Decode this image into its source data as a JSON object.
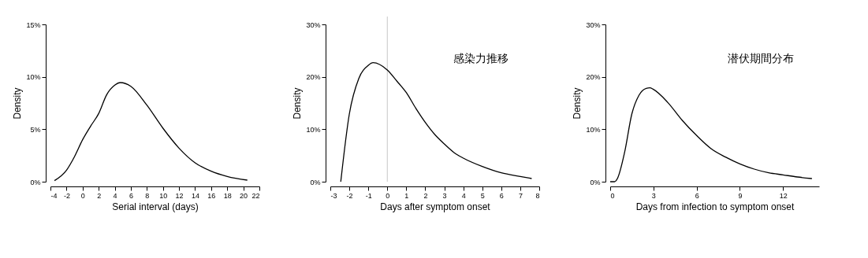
{
  "chart_data": [
    {
      "type": "line",
      "xlabel": "Serial interval (days)",
      "ylabel": "Density",
      "x": [
        -3.5,
        -2,
        -1,
        0,
        1,
        2,
        3,
        4,
        4.7,
        6,
        8,
        10,
        12,
        14,
        16,
        18,
        20.5
      ],
      "series": [
        {
          "color": "#000000",
          "values": [
            0.1,
            1.1,
            2.4,
            4.0,
            5.3,
            6.5,
            8.3,
            9.2,
            9.45,
            9.1,
            7.3,
            5.1,
            3.2,
            1.8,
            1.0,
            0.5,
            0.15
          ]
        }
      ],
      "xlim": [
        -4,
        22
      ],
      "xticks": [
        -4,
        -2,
        0,
        2,
        4,
        6,
        8,
        10,
        12,
        14,
        16,
        18,
        20,
        22
      ],
      "ylim": [
        0,
        15
      ],
      "yticks": [
        {
          "value": 0,
          "label": "0%"
        },
        {
          "value": 5,
          "label": "5%"
        },
        {
          "value": 10,
          "label": "10%"
        },
        {
          "value": 15,
          "label": "15%"
        }
      ],
      "grid": false,
      "marker": "none",
      "line_style": "solid"
    },
    {
      "type": "line",
      "xlabel": "Days after symptom onset",
      "ylabel": "Density",
      "annotations": [
        "感染力推移"
      ],
      "x": [
        -2.45,
        -2,
        -1.5,
        -1,
        -0.75,
        0,
        0.5,
        1,
        1.5,
        2,
        2.5,
        3,
        3.5,
        4,
        5,
        6,
        7,
        7.6
      ],
      "series": [
        {
          "color": "#000000",
          "values": [
            0,
            12.9,
            19.7,
            22.2,
            22.7,
            21.3,
            19.2,
            17.0,
            14.0,
            11.3,
            9.0,
            7.2,
            5.6,
            4.5,
            2.9,
            1.7,
            1.0,
            0.6
          ]
        }
      ],
      "xlim": [
        -3,
        8
      ],
      "xticks": [
        -3,
        -2,
        -1,
        0,
        1,
        2,
        3,
        4,
        5,
        6,
        7,
        8
      ],
      "ylim": [
        0,
        30
      ],
      "yticks": [
        {
          "value": 0,
          "label": "0%"
        },
        {
          "value": 10,
          "label": "10%"
        },
        {
          "value": 20,
          "label": "20%"
        },
        {
          "value": 30,
          "label": "30%"
        }
      ],
      "ref_lines": [
        {
          "axis": "x",
          "value": 0,
          "color": "#c8c8c8"
        }
      ],
      "grid": false,
      "marker": "none",
      "line_style": "solid"
    },
    {
      "type": "line",
      "xlabel": "Days from infection to symptom onset",
      "ylabel": "Density",
      "annotations": [
        "潜伏期間分布"
      ],
      "x": [
        0,
        0.3,
        0.5,
        1,
        1.5,
        2,
        2.5,
        2.75,
        3,
        4,
        5,
        6,
        7,
        8,
        9,
        10,
        11,
        12,
        13,
        14
      ],
      "series": [
        {
          "color": "#000000",
          "values": [
            0,
            0,
            0.6,
            5.6,
            12.9,
            16.5,
            17.8,
            17.9,
            17.6,
            15.1,
            11.7,
            8.8,
            6.3,
            4.7,
            3.4,
            2.4,
            1.7,
            1.3,
            0.9,
            0.6
          ]
        }
      ],
      "xlim": [
        0,
        14.5
      ],
      "xticks": [
        0,
        3,
        6,
        9,
        12
      ],
      "ylim": [
        0,
        30
      ],
      "yticks": [
        {
          "value": 0,
          "label": "0%"
        },
        {
          "value": 10,
          "label": "10%"
        },
        {
          "value": 20,
          "label": "20%"
        },
        {
          "value": 30,
          "label": "30%"
        }
      ],
      "grid": false,
      "marker": "none",
      "line_style": "solid"
    }
  ]
}
